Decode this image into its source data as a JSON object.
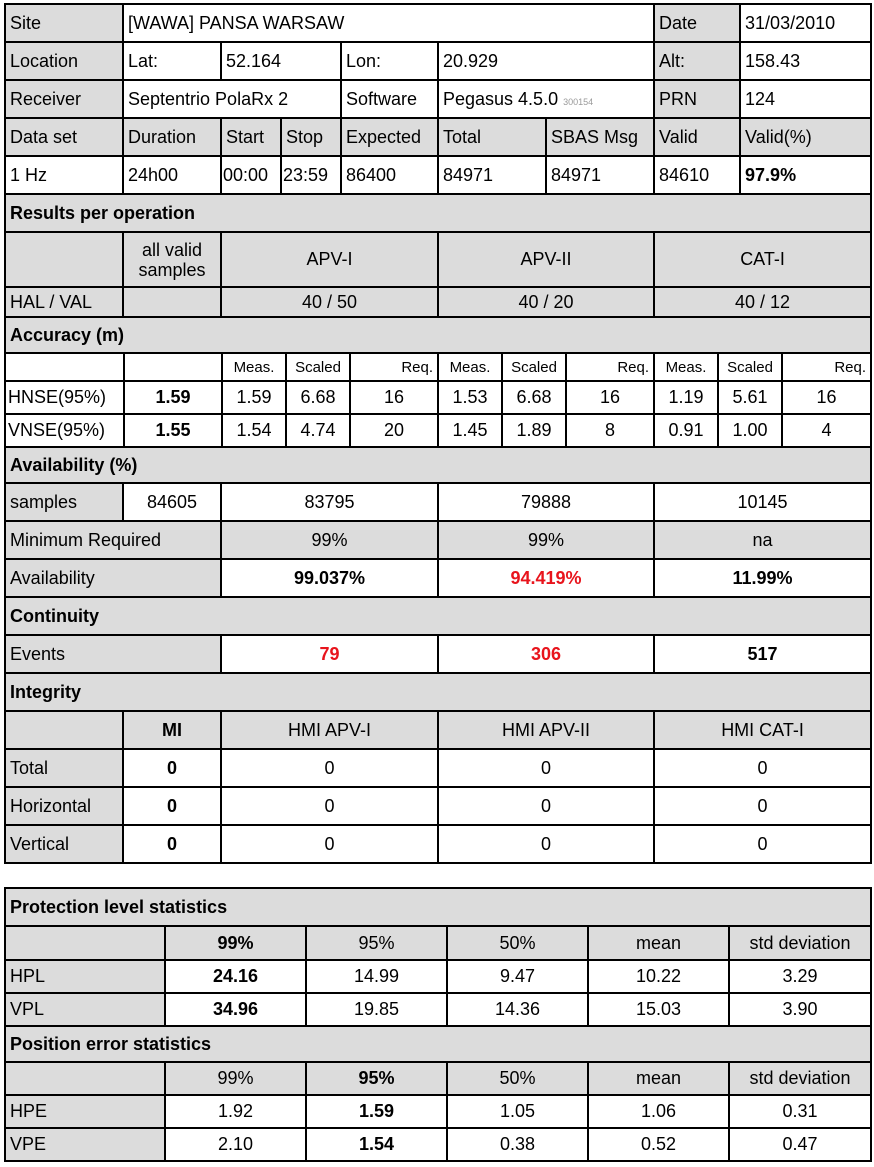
{
  "info": {
    "site_label": "Site",
    "site": "[WAWA] PANSA WARSAW",
    "date_label": "Date",
    "date": "31/03/2010",
    "location_label": "Location",
    "lat_label": "Lat:",
    "lat": "52.164",
    "lon_label": "Lon:",
    "lon": "20.929",
    "alt_label": "Alt:",
    "alt": "158.43",
    "receiver_label": "Receiver",
    "receiver": "Septentrio PolaRx 2",
    "software_label": "Software",
    "software": "Pegasus 4.5.0",
    "software_build": "300154",
    "prn_label": "PRN",
    "prn": "124"
  },
  "dataset": {
    "headers": [
      "Data set",
      "Duration",
      "Start",
      "Stop",
      "Expected",
      "Total",
      "SBAS Msg",
      "Valid",
      "Valid(%)"
    ],
    "values": [
      "1 Hz",
      "24h00",
      "00:00",
      "23:59",
      "86400",
      "84971",
      "84971",
      "84610",
      "97.9%"
    ]
  },
  "operations": {
    "title": "Results per operation",
    "all_valid_line1": "all valid",
    "all_valid_line2": "samples",
    "ops": [
      "APV-I",
      "APV-II",
      "CAT-I"
    ],
    "hal_val_label": "HAL / VAL",
    "hal_val": [
      "40 / 50",
      "40 / 20",
      "40 / 12"
    ]
  },
  "accuracy": {
    "title": "Accuracy (m)",
    "sub_headers": [
      "Meas.",
      "Scaled",
      "Req."
    ],
    "rows": [
      {
        "label": "HNSE(95%)",
        "all": "1.59",
        "values": [
          "1.59",
          "6.68",
          "16",
          "1.53",
          "6.68",
          "16",
          "1.19",
          "5.61",
          "16"
        ]
      },
      {
        "label": "VNSE(95%)",
        "all": "1.55",
        "values": [
          "1.54",
          "4.74",
          "20",
          "1.45",
          "1.89",
          "8",
          "0.91",
          "1.00",
          "4"
        ]
      }
    ]
  },
  "availability": {
    "title": "Availability (%)",
    "samples_label": "samples",
    "samples_all": "84605",
    "samples": [
      "83795",
      "79888",
      "10145"
    ],
    "min_req_label": "Minimum Required",
    "min_req": [
      "99%",
      "99%",
      "na"
    ],
    "avail_label": "Availability",
    "avail": [
      "99.037%",
      "94.419%",
      "11.99%"
    ],
    "avail_colors": [
      "#000000",
      "#e8141c",
      "#000000"
    ]
  },
  "continuity": {
    "title": "Continuity",
    "events_label": "Events",
    "events": [
      "79",
      "306",
      "517"
    ],
    "event_colors": [
      "#e8141c",
      "#e8141c",
      "#000000"
    ]
  },
  "integrity": {
    "title": "Integrity",
    "headers": [
      "MI",
      "HMI APV-I",
      "HMI APV-II",
      "HMI CAT-I"
    ],
    "rows": [
      {
        "label": "Total",
        "values": [
          "0",
          "0",
          "0",
          "0"
        ]
      },
      {
        "label": "Horizontal",
        "values": [
          "0",
          "0",
          "0",
          "0"
        ]
      },
      {
        "label": "Vertical",
        "values": [
          "0",
          "0",
          "0",
          "0"
        ]
      }
    ]
  },
  "protection": {
    "title": "Protection level statistics",
    "headers": [
      "99%",
      "95%",
      "50%",
      "mean",
      "std deviation"
    ],
    "rows": [
      {
        "label": "HPL",
        "values": [
          "24.16",
          "14.99",
          "9.47",
          "10.22",
          "3.29"
        ]
      },
      {
        "label": "VPL",
        "values": [
          "34.96",
          "19.85",
          "14.36",
          "15.03",
          "3.90"
        ]
      }
    ]
  },
  "position": {
    "title": "Position error statistics",
    "headers": [
      "99%",
      "95%",
      "50%",
      "mean",
      "std deviation"
    ],
    "rows": [
      {
        "label": "HPE",
        "values": [
          "1.92",
          "1.59",
          "1.05",
          "1.06",
          "0.31"
        ]
      },
      {
        "label": "VPE",
        "values": [
          "2.10",
          "1.54",
          "0.38",
          "0.52",
          "0.47"
        ]
      }
    ]
  }
}
